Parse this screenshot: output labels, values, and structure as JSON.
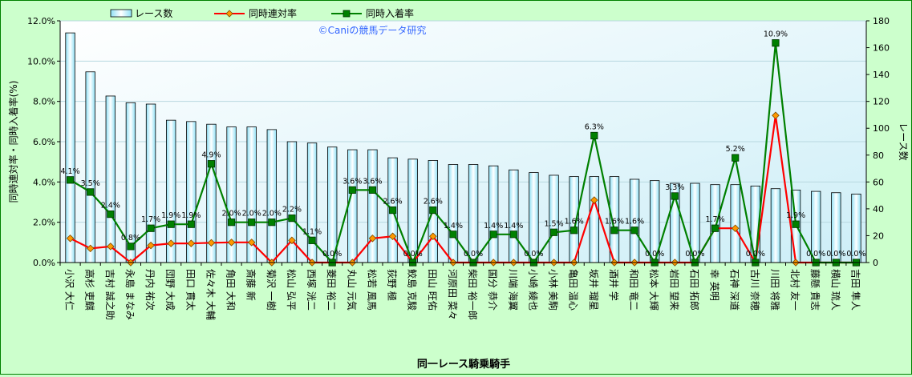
{
  "chart_data": {
    "type": "bar+line",
    "title": "",
    "watermark": "©Caniの競馬データ研究",
    "xlabel": "同一レース騎乗騎手",
    "ylabel_left": "同時連対率・同時入着率(%)",
    "ylabel_right": "レース数",
    "ylim_left": [
      0,
      12
    ],
    "ylim_right": [
      0,
      180
    ],
    "left_ticks": [
      "0.0%",
      "2.0%",
      "4.0%",
      "6.0%",
      "8.0%",
      "10.0%",
      "12.0%"
    ],
    "right_ticks": [
      "0",
      "20",
      "40",
      "60",
      "80",
      "100",
      "120",
      "140",
      "160",
      "180"
    ],
    "legend_position": "top",
    "categories": [
      "小沢 大仁",
      "高杉 吏麒",
      "吉村 誠之助",
      "永島 まなみ",
      "丹内 祐次",
      "団野 大成",
      "田口 貫太",
      "佐々木 大輔",
      "角田 大和",
      "斎藤 新",
      "菊沢 一樹",
      "松山 弘平",
      "西塚 洸二",
      "菱田 裕二",
      "丸山 元気",
      "松若 風馬",
      "荻野 極",
      "鮫島 克駿",
      "田山 旺佑",
      "河原田 菜々",
      "柴田 裕一郎",
      "国分 恭介",
      "川端 海翼",
      "小崎 綾也",
      "小林 美駒",
      "亀田 温心",
      "坂井 瑠星",
      "酒井 学",
      "和田 竜二",
      "松本 大輝",
      "岩田 望来",
      "石田 拓郎",
      "幸 英明",
      "石神 深道",
      "古川 奈穂",
      "川田 将雅",
      "北村 友一",
      "藤懸 貴志",
      "横山 琉人",
      "吉田 隼人"
    ],
    "series": [
      {
        "name": "レース数",
        "kind": "bar",
        "axis": "right",
        "color": "#bfefff",
        "values": [
          171,
          142,
          124,
          119,
          118,
          106,
          105,
          103,
          101,
          101,
          99,
          90,
          89,
          86,
          84,
          84,
          78,
          77,
          76,
          73,
          73,
          72,
          69,
          67,
          65,
          64,
          64,
          64,
          62,
          61,
          59,
          59,
          58,
          58,
          57,
          55,
          54,
          53,
          52,
          51
        ]
      },
      {
        "name": "同時連対率",
        "kind": "line",
        "axis": "left",
        "color": "#ff0000",
        "marker_color": "#ff9900",
        "values": [
          1.2,
          0.7,
          0.8,
          0.0,
          0.85,
          0.95,
          0.95,
          0.98,
          1.0,
          1.0,
          0.0,
          1.1,
          0.0,
          0.0,
          0.0,
          1.2,
          1.3,
          0.0,
          1.3,
          0.0,
          0.0,
          0.0,
          0.0,
          0.0,
          0.0,
          0.0,
          3.1,
          0.0,
          0.0,
          0.0,
          0.0,
          0.0,
          1.7,
          1.7,
          0.0,
          7.3,
          0.0,
          0.0,
          0.0,
          0.0
        ]
      },
      {
        "name": "同時入着率",
        "kind": "line",
        "axis": "left",
        "color": "#008000",
        "marker_color": "#008000",
        "values": [
          4.1,
          3.5,
          2.4,
          0.8,
          1.7,
          1.9,
          1.9,
          4.9,
          2.0,
          2.0,
          2.0,
          2.2,
          1.1,
          0.0,
          3.6,
          3.6,
          2.6,
          0.0,
          2.6,
          1.4,
          0.0,
          1.4,
          1.4,
          0.0,
          1.5,
          1.6,
          6.3,
          1.6,
          1.6,
          0.0,
          3.3,
          0.0,
          1.7,
          5.2,
          0.0,
          10.9,
          1.9,
          0.0,
          0.0,
          0.0
        ]
      }
    ],
    "data_labels": [
      "4.1%",
      "3.5%",
      "2.4%",
      "0.8%",
      "1.7%",
      "1.9%",
      "1.9%",
      "4.9%",
      "2.0%",
      "2.0%",
      "2.0%",
      "2.2%",
      "1.1%",
      "0.0%",
      "3.6%",
      "3.6%",
      "2.6%",
      "0.0%",
      "2.6%",
      "1.4%",
      "0.0%",
      "1.4%",
      "1.4%",
      "0.0%",
      "1.5%",
      "1.6%",
      "6.3%",
      "1.6%",
      "1.6%",
      "0.0%",
      "3.3%",
      "0.0%",
      "1.7%",
      "5.2%",
      "0.0%",
      "10.9%",
      "1.9%",
      "0.0%",
      "0.0%",
      "0.0%"
    ]
  }
}
